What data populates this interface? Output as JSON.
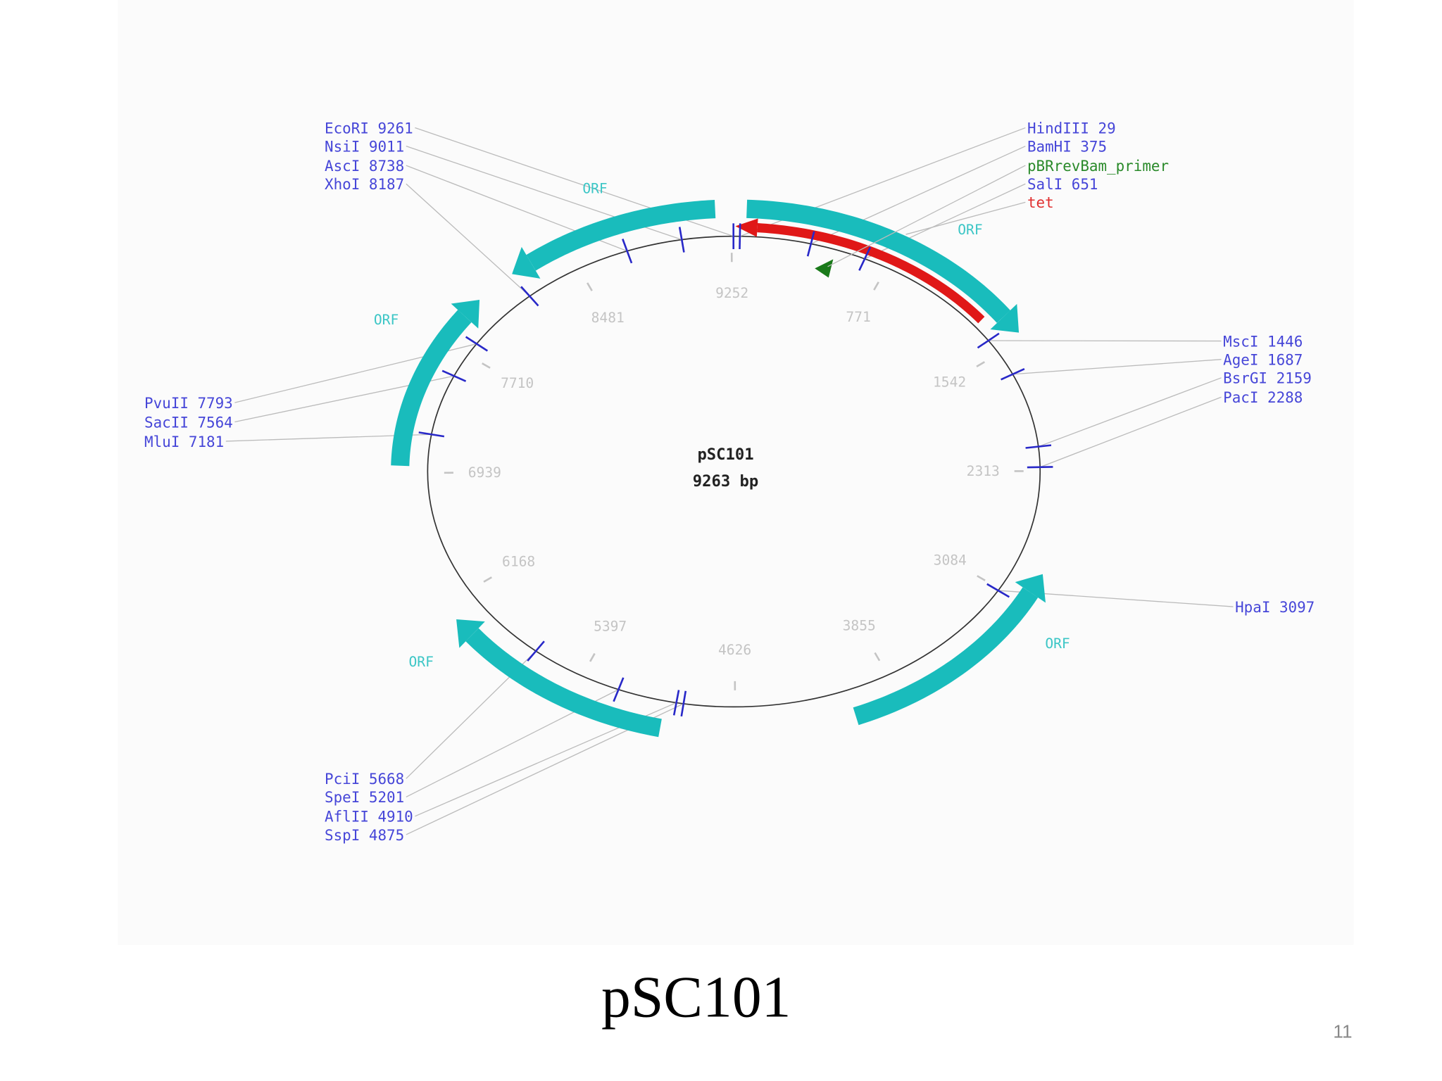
{
  "map": {
    "name": "pSC101",
    "length": {
      "value": 9263,
      "label": "9263 bp"
    },
    "sites": [
      {
        "name": "EcoRI",
        "position": 9261
      },
      {
        "name": "NsiI",
        "position": 9011
      },
      {
        "name": "AscI",
        "position": 8738
      },
      {
        "name": "XhoI",
        "position": 8187
      },
      {
        "name": "HindIII",
        "position": 29
      },
      {
        "name": "BamHI",
        "position": 375
      },
      {
        "name": "SalI",
        "position": 651
      },
      {
        "name": "MscI",
        "position": 1446
      },
      {
        "name": "AgeI",
        "position": 1687
      },
      {
        "name": "BsrGI",
        "position": 2159
      },
      {
        "name": "PacI",
        "position": 2288
      },
      {
        "name": "HpaI",
        "position": 3097
      },
      {
        "name": "PciI",
        "position": 5668
      },
      {
        "name": "SpeI",
        "position": 5201
      },
      {
        "name": "AflII",
        "position": 4910
      },
      {
        "name": "SspI",
        "position": 4875
      },
      {
        "name": "PvuII",
        "position": 7793
      },
      {
        "name": "SacII",
        "position": 7564
      },
      {
        "name": "MluI",
        "position": 7181
      }
    ],
    "features": [
      {
        "label": "pBRrevBam_primer"
      },
      {
        "label": "tet"
      }
    ],
    "orf_labels": [
      "ORF",
      "ORF",
      "ORF",
      "ORF",
      "ORF"
    ],
    "ticks": [
      9252,
      771,
      1542,
      2313,
      3084,
      3855,
      4626,
      5397,
      6168,
      6939,
      7710,
      8481
    ]
  },
  "slide": {
    "title": "pSC101",
    "number": 11
  }
}
